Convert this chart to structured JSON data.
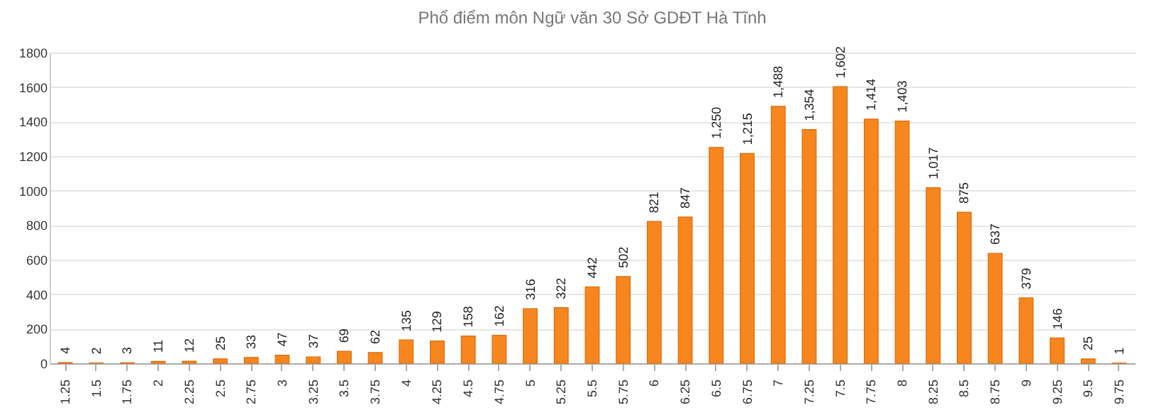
{
  "chart_data": {
    "type": "bar",
    "title": "Phổ điểm môn  Ngữ văn 30 Sở GDĐT Hà Tĩnh",
    "categories": [
      "1.25",
      "1.5",
      "1.75",
      "2",
      "2.25",
      "2.5",
      "2.75",
      "3",
      "3.25",
      "3.5",
      "3.75",
      "4",
      "4.25",
      "4.5",
      "4.75",
      "5",
      "5.25",
      "5.5",
      "5.75",
      "6",
      "6.25",
      "6.5",
      "6.75",
      "7",
      "7.25",
      "7.5",
      "7.75",
      "8",
      "8.25",
      "8.5",
      "8.75",
      "9",
      "9.25",
      "9.5",
      "9.75"
    ],
    "values": [
      4,
      2,
      3,
      11,
      12,
      25,
      33,
      47,
      37,
      69,
      62,
      135,
      129,
      158,
      162,
      316,
      322,
      442,
      502,
      821,
      847,
      1250,
      1215,
      1488,
      1354,
      1602,
      1414,
      1403,
      1017,
      875,
      637,
      379,
      146,
      25,
      1
    ],
    "value_labels": [
      "4",
      "2",
      "3",
      "11",
      "12",
      "25",
      "33",
      "47",
      "37",
      "69",
      "62",
      "135",
      "129",
      "158",
      "162",
      "316",
      "322",
      "442",
      "502",
      "821",
      "847",
      "1,250",
      "1,215",
      "1,488",
      "1,354",
      "1,602",
      "1,414",
      "1,403",
      "1,017",
      "875",
      "637",
      "379",
      "146",
      "25",
      "1"
    ],
    "color": "#f7861f",
    "ylim": [
      0,
      1800
    ],
    "yticks": [
      0,
      200,
      400,
      600,
      800,
      1000,
      1200,
      1400,
      1600,
      1800
    ],
    "grid": "y"
  }
}
